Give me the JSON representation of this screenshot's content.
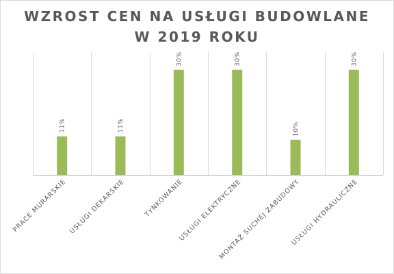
{
  "chart_data": {
    "type": "bar",
    "title": "WZROST CEN NA USŁUGI BUDOWLANE W 2019 ROKU",
    "categories": [
      "PRACE MURARSKIE",
      "USŁUGI DEKARSKIE",
      "TYNKOWANIE",
      "USŁUGI ELEKTRYCZNE",
      "MONTAŻ SUCHEJ ZABUDOWY",
      "USŁUGI HYDRAULICZNE"
    ],
    "values": [
      11,
      11,
      30,
      30,
      10,
      30
    ],
    "data_labels": [
      "11%",
      "11%",
      "30%",
      "30%",
      "10%",
      "30%"
    ],
    "ylim": [
      0,
      30
    ],
    "bar_color": "#9bbb59",
    "grid": "vertical category separators",
    "legend": "none"
  }
}
